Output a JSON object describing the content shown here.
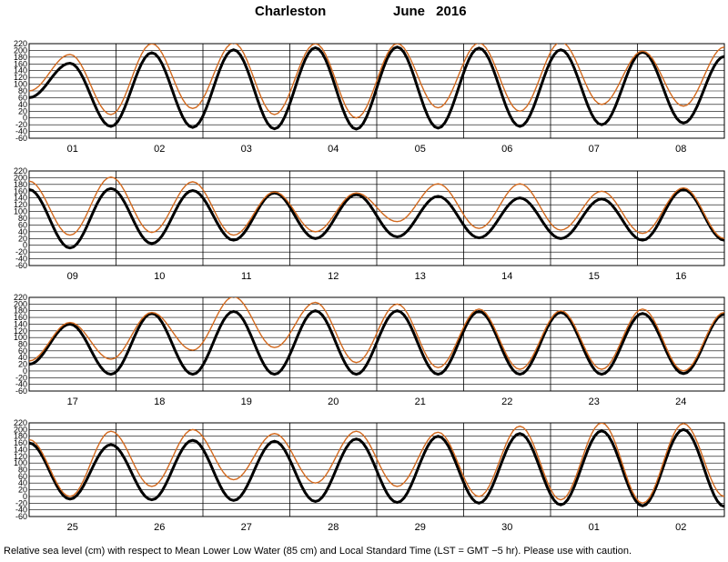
{
  "header": {
    "station": "Charleston",
    "month_year": "June  2016"
  },
  "footer": {
    "note": "Relative sea level (cm) with respect to Mean Lower Low Water (85 cm) and Local Standard Time (LST = GMT −5 hr). Please use with caution."
  },
  "colors": {
    "predicted": "#000000",
    "observed": "#d2691e",
    "grid": "#000000"
  },
  "chart_data": [
    {
      "type": "line",
      "ylim": [
        -60,
        220
      ],
      "yticks": [
        -60,
        -40,
        -20,
        0,
        20,
        40,
        60,
        80,
        100,
        120,
        140,
        160,
        180,
        200,
        220
      ],
      "days": [
        "01",
        "02",
        "03",
        "04",
        "05",
        "06",
        "07",
        "08"
      ],
      "series": [
        {
          "key": "predicted",
          "values": [
            60,
            162,
            -25,
            193,
            -28,
            202,
            -32,
            208,
            -33,
            210,
            -30,
            207,
            -25,
            202,
            -20,
            195,
            -15,
            182
          ]
        },
        {
          "key": "observed",
          "values": [
            80,
            188,
            10,
            220,
            28,
            222,
            10,
            220,
            0,
            220,
            30,
            222,
            20,
            225,
            40,
            198,
            35,
            210
          ]
        }
      ]
    },
    {
      "type": "line",
      "ylim": [
        -60,
        220
      ],
      "yticks": [
        -60,
        -40,
        -20,
        0,
        20,
        40,
        60,
        80,
        100,
        120,
        140,
        160,
        180,
        200,
        220
      ],
      "days": [
        "09",
        "10",
        "11",
        "12",
        "13",
        "14",
        "15",
        "16"
      ],
      "series": [
        {
          "key": "predicted",
          "values": [
            165,
            -8,
            168,
            5,
            162,
            15,
            155,
            20,
            150,
            25,
            145,
            22,
            140,
            20,
            137,
            15,
            165,
            15
          ]
        },
        {
          "key": "observed",
          "values": [
            190,
            30,
            202,
            38,
            188,
            30,
            158,
            40,
            155,
            70,
            182,
            50,
            182,
            45,
            160,
            35,
            170,
            20
          ]
        }
      ]
    },
    {
      "type": "line",
      "ylim": [
        -60,
        220
      ],
      "yticks": [
        -60,
        -40,
        -20,
        0,
        20,
        40,
        60,
        80,
        100,
        120,
        140,
        160,
        180,
        200,
        220
      ],
      "days": [
        "17",
        "18",
        "19",
        "20",
        "21",
        "22",
        "23",
        "24"
      ],
      "series": [
        {
          "key": "predicted",
          "values": [
            20,
            140,
            -10,
            172,
            -10,
            178,
            -10,
            180,
            -10,
            180,
            -10,
            178,
            -10,
            175,
            -10,
            172,
            -8,
            170
          ]
        },
        {
          "key": "observed",
          "values": [
            30,
            145,
            35,
            175,
            62,
            222,
            70,
            205,
            25,
            200,
            10,
            185,
            5,
            180,
            5,
            185,
            0,
            175
          ]
        }
      ]
    },
    {
      "type": "line",
      "ylim": [
        -60,
        220
      ],
      "yticks": [
        -60,
        -40,
        -20,
        0,
        20,
        40,
        60,
        80,
        100,
        120,
        140,
        160,
        180,
        200,
        220
      ],
      "days": [
        "25",
        "26",
        "27",
        "28",
        "29",
        "30",
        "01",
        "02"
      ],
      "series": [
        {
          "key": "predicted",
          "values": [
            160,
            -8,
            155,
            -10,
            168,
            -12,
            165,
            -15,
            172,
            -18,
            180,
            -20,
            188,
            -25,
            196,
            -28,
            200,
            -30
          ]
        },
        {
          "key": "observed",
          "values": [
            170,
            0,
            195,
            30,
            200,
            50,
            188,
            40,
            195,
            30,
            192,
            0,
            210,
            -10,
            220,
            -20,
            218,
            0
          ]
        }
      ]
    }
  ]
}
